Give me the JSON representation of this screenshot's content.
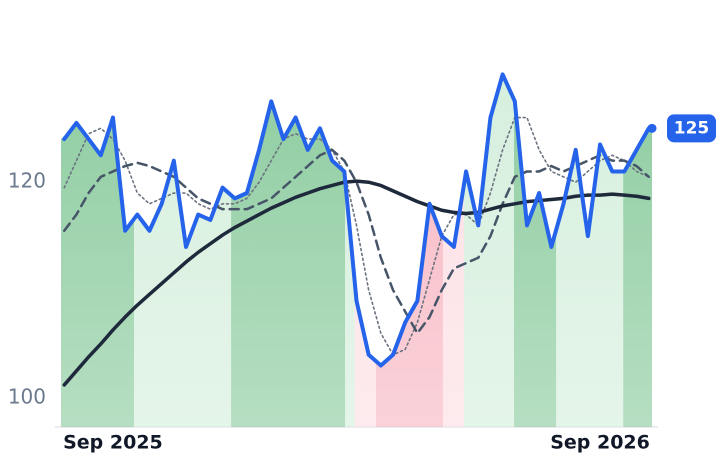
{
  "chart_data": {
    "type": "line",
    "x": [
      -1.2,
      -0.9,
      -0.6,
      -0.3,
      0,
      0.3,
      0.6,
      0.9,
      1.2,
      1.5,
      1.8,
      2.1,
      2.4,
      2.7,
      3,
      3.3,
      3.6,
      3.9,
      4.2,
      4.5,
      4.8,
      5.1,
      5.4,
      5.7,
      6,
      6.3,
      6.6,
      6.9,
      7.2,
      7.5,
      7.8,
      8.1,
      8.4,
      8.7,
      9,
      9.3,
      9.6,
      9.9,
      10.2,
      10.5,
      10.8,
      11.1,
      11.4,
      11.7,
      12,
      12.3,
      12.6,
      12.9,
      13.2
    ],
    "series": [
      {
        "color": "#2563eb",
        "style": "solid",
        "width": 4,
        "values": [
          124,
          125.5,
          124,
          122.5,
          126,
          115.5,
          117,
          115.5,
          118,
          122,
          114,
          117,
          116.5,
          119.5,
          118.5,
          119,
          123,
          127.5,
          124,
          126,
          123,
          125,
          122,
          121,
          109,
          104,
          103,
          104,
          107,
          109,
          118,
          115,
          114,
          121,
          116,
          126,
          130,
          127.5,
          116,
          119,
          114,
          118,
          123,
          115,
          123.5,
          121,
          121,
          123,
          125
        ]
      },
      {
        "color": "#1e293b",
        "style": "solid",
        "width": 3.5,
        "values": [
          101.2,
          102.5,
          103.8,
          105,
          106.3,
          107.5,
          108.6,
          109.6,
          110.6,
          111.6,
          112.6,
          113.5,
          114.3,
          115.1,
          115.8,
          116.4,
          117,
          117.6,
          118.1,
          118.6,
          119,
          119.4,
          119.7,
          120,
          120.1,
          120,
          119.7,
          119.2,
          118.7,
          118.2,
          117.8,
          117.4,
          117.2,
          117.1,
          117.2,
          117.5,
          117.8,
          118,
          118.2,
          118.3,
          118.4,
          118.5,
          118.7,
          118.8,
          118.8,
          118.9,
          118.8,
          118.7,
          118.5
        ]
      },
      {
        "color": "#475569",
        "style": "dashed",
        "width": 2.5,
        "values": [
          115.5,
          117,
          119,
          120.5,
          121,
          121.5,
          121.8,
          121.5,
          121,
          120.5,
          119.5,
          118.5,
          118,
          117.5,
          117.5,
          117.5,
          118,
          118.5,
          119.5,
          120.5,
          121.5,
          122.5,
          123,
          122,
          120,
          117,
          113,
          110,
          108,
          106,
          107.5,
          110,
          112,
          112.5,
          113,
          115,
          118,
          120.5,
          121,
          121,
          121.5,
          121,
          121.5,
          122,
          122.5,
          122,
          122,
          121.5,
          120.5
        ]
      },
      {
        "color": "#6b7280",
        "style": "dotted",
        "width": 1.6,
        "values": [
          119.5,
          122,
          124.5,
          125,
          124,
          122,
          119,
          118,
          118.5,
          119,
          119,
          118,
          117.5,
          118,
          118,
          118.5,
          120,
          122,
          124,
          124.5,
          124,
          124,
          123,
          121,
          116,
          110,
          106,
          104,
          104.5,
          107,
          111,
          115,
          117,
          117,
          116,
          119,
          123,
          126,
          126,
          123,
          121,
          120.5,
          120,
          121,
          122,
          122.5,
          122,
          121,
          120.5
        ]
      }
    ],
    "bands": [
      {
        "x0": -1.28,
        "x1": 0.52,
        "color": "#86c99a"
      },
      {
        "x0": 0.52,
        "x1": 2.91,
        "color": "#d3eedb"
      },
      {
        "x0": 2.91,
        "x1": 5.72,
        "color": "#86c99a"
      },
      {
        "x0": 5.72,
        "x1": 5.96,
        "color": "#d3eedb"
      },
      {
        "x0": 5.96,
        "x1": 6.48,
        "color": "#fcdde2"
      },
      {
        "x0": 6.48,
        "x1": 8.13,
        "color": "#f7b3bf"
      },
      {
        "x0": 8.13,
        "x1": 8.65,
        "color": "#fcdde2"
      },
      {
        "x0": 8.65,
        "x1": 9.88,
        "color": "#d3eedb"
      },
      {
        "x0": 9.88,
        "x1": 10.92,
        "color": "#86c99a"
      },
      {
        "x0": 10.92,
        "x1": 12.57,
        "color": "#d3eedb"
      },
      {
        "x0": 12.57,
        "x1": 13.28,
        "color": "#86c99a"
      }
    ],
    "xlim": [
      -1.28,
      13.28
    ],
    "ylim": [
      97.3,
      136.9
    ],
    "xticks": [
      {
        "value": 0,
        "label": "Sep 2025"
      },
      {
        "value": 12,
        "label": "Sep 2026"
      }
    ],
    "yticks": [
      100,
      120
    ],
    "grid": false
  }
}
